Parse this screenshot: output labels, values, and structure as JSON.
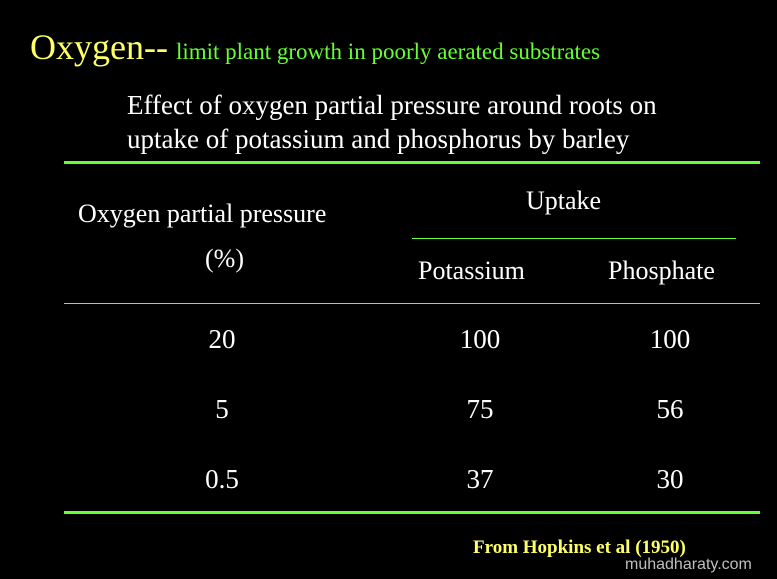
{
  "heading": {
    "main": "Oxygen--",
    "sub": "limit plant growth in poorly aerated substrates"
  },
  "subtitle": {
    "line1": "Effect of oxygen partial pressure around roots on",
    "line2": "uptake of potassium and phosphorus by barley"
  },
  "table": {
    "col1_header_line1": "Oxygen partial pressure",
    "col1_header_line2": "(%)",
    "group_header": "Uptake",
    "col2_header": "Potassium",
    "col3_header": "Phosphate",
    "rows": [
      {
        "oxygen": "20",
        "potassium": "100",
        "phosphate": "100"
      },
      {
        "oxygen": "5",
        "potassium": "75",
        "phosphate": "56"
      },
      {
        "oxygen": "0.5",
        "potassium": "37",
        "phosphate": "30"
      }
    ]
  },
  "source": "From Hopkins et al (1950)",
  "watermark": "muhadharaty.com",
  "colors": {
    "background": "#000000",
    "heading": "#ffff66",
    "accent_green": "#66ff33",
    "text": "#ffffff"
  }
}
